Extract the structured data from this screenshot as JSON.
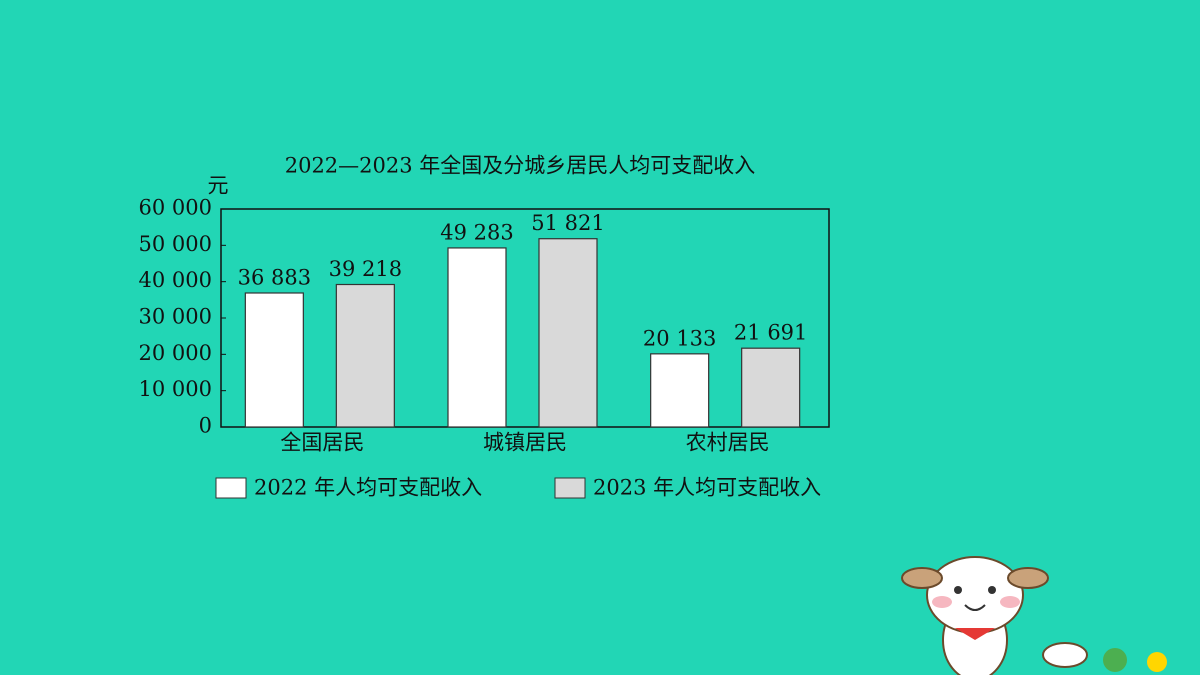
{
  "chart_data": {
    "type": "bar",
    "title": "2022—2023 年全国及分城乡居民人均可支配收入",
    "ylabel": "元",
    "categories": [
      "全国居民",
      "城镇居民",
      "农村居民"
    ],
    "series": [
      {
        "name": "2022 年人均可支配收入",
        "color": "#ffffff",
        "values": [
          36883,
          49283,
          20133
        ],
        "value_labels": [
          "36 883",
          "49 283",
          "20 133"
        ]
      },
      {
        "name": "2023 年人均可支配收入",
        "color": "#d9d9d9",
        "values": [
          39218,
          51821,
          21691
        ],
        "value_labels": [
          "39 218",
          "51 821",
          "21 691"
        ]
      }
    ],
    "ylim": [
      0,
      60000
    ],
    "yticks": [
      0,
      {
        "value": 10000,
        "label": "10 000"
      },
      {
        "value": 20000,
        "label": "20 000"
      },
      {
        "value": 30000,
        "label": "30 000"
      },
      {
        "value": 40000,
        "label": "40 000"
      },
      {
        "value": 50000,
        "label": "50 000"
      },
      {
        "value": 60000,
        "label": "60 000"
      }
    ],
    "grid": false
  }
}
